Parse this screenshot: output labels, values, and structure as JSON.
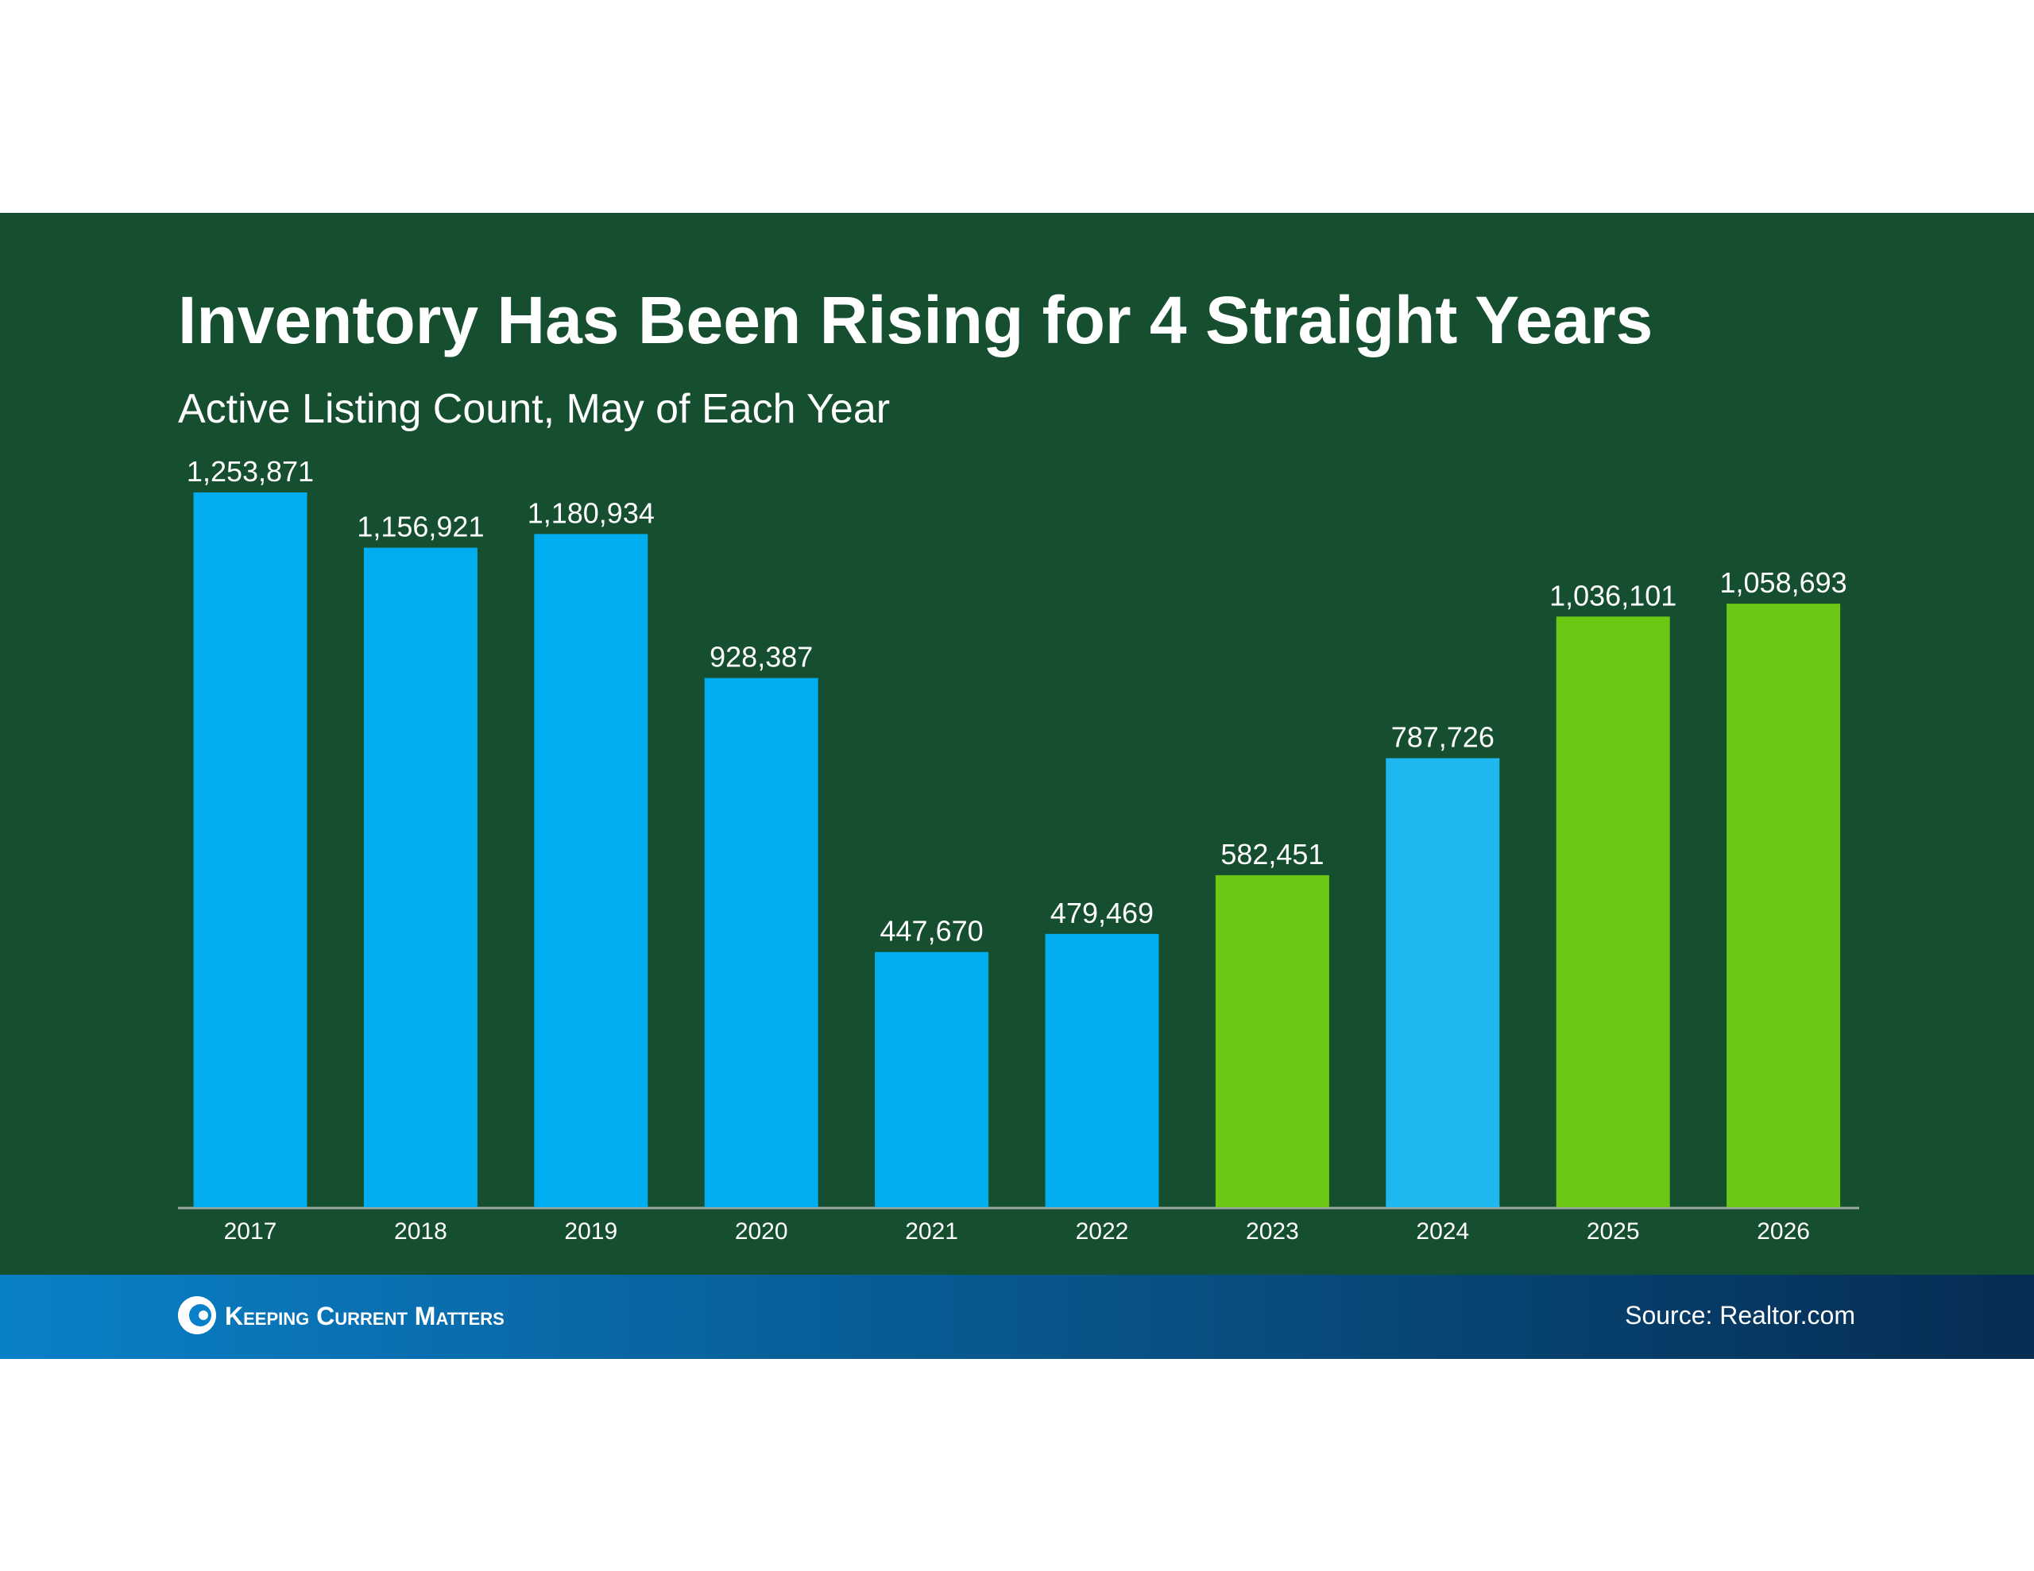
{
  "chart_data": {
    "type": "bar",
    "title": "Inventory Has Been Rising for 4 Straight Years",
    "subtitle": "Active Listing Count, May of Each Year",
    "categories": [
      "2017",
      "2018",
      "2019",
      "2020",
      "2021",
      "2022",
      "2023",
      "2024",
      "2025",
      "2026"
    ],
    "values": [
      1253871,
      1156921,
      1180934,
      928387,
      447670,
      479469,
      582451,
      787726,
      1036101,
      1058693
    ],
    "value_labels": [
      "1,253,871",
      "1,156,921",
      "1,180,934",
      "928,387",
      "447,670",
      "479,469",
      "582,451",
      "787,726",
      "1,036,101",
      "1,058,693"
    ],
    "colors": [
      "#00aeef",
      "#00aeef",
      "#00aeef",
      "#00aeef",
      "#00aeef",
      "#00aeef",
      "#6cc814",
      "#1fb7ef",
      "#6cc814",
      "#6cc814"
    ],
    "source": "Source: Realtor.com",
    "brand": "Keeping Current Matters"
  }
}
